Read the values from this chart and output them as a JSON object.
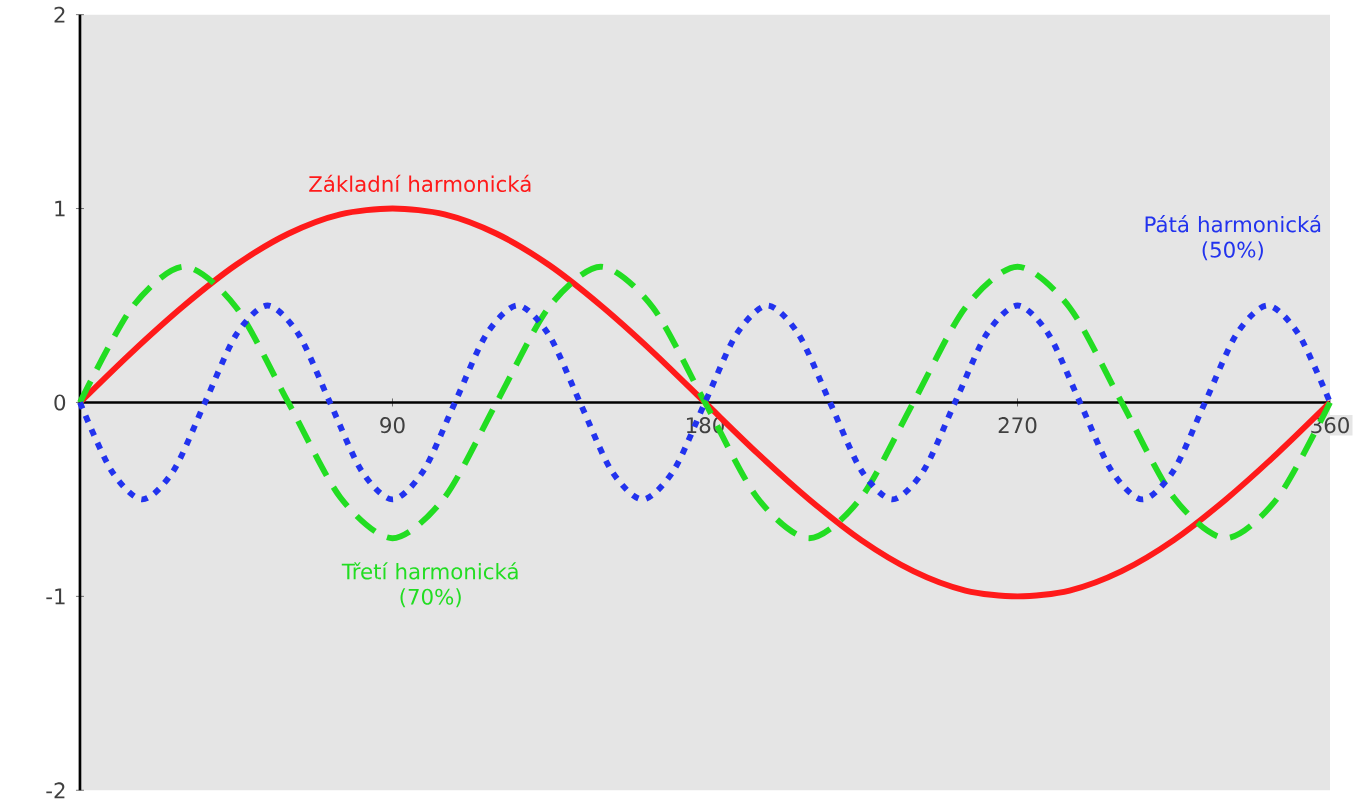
{
  "chart_data": {
    "type": "line",
    "xlim": [
      0,
      360
    ],
    "ylim": [
      -2,
      2
    ],
    "xticks": [
      {
        "value": 0,
        "label": null
      },
      {
        "value": 90,
        "label": "90"
      },
      {
        "value": 180,
        "label": "180"
      },
      {
        "value": 270,
        "label": "270"
      },
      {
        "value": 360,
        "label": "360"
      }
    ],
    "yticks": [
      {
        "value": -2,
        "label": "-2"
      },
      {
        "value": -1,
        "label": "-1"
      },
      {
        "value": 0,
        "label": "0"
      },
      {
        "value": 1,
        "label": "1"
      },
      {
        "value": 2,
        "label": "2"
      }
    ],
    "grid": false,
    "legend": false,
    "series": [
      {
        "name": "Základní harmonická",
        "color": "#ff1a1a",
        "line_style": "solid",
        "x": [
          0,
          15,
          30,
          45,
          60,
          75,
          90,
          105,
          120,
          135,
          150,
          165,
          180,
          195,
          210,
          225,
          240,
          255,
          270,
          285,
          300,
          315,
          330,
          345,
          360
        ],
        "values": [
          0,
          0.26,
          0.5,
          0.71,
          0.87,
          0.97,
          1,
          0.97,
          0.87,
          0.71,
          0.5,
          0.26,
          0,
          -0.26,
          -0.5,
          -0.71,
          -0.87,
          -0.97,
          -1,
          -0.97,
          -0.87,
          -0.71,
          -0.5,
          -0.26,
          0
        ]
      },
      {
        "name": "Třetí harmonická (70%)",
        "color": "#22dd22",
        "line_style": "dashed",
        "x": [
          0,
          15,
          30,
          45,
          60,
          75,
          90,
          105,
          120,
          135,
          150,
          165,
          180,
          195,
          210,
          225,
          240,
          255,
          270,
          285,
          300,
          315,
          330,
          345,
          360
        ],
        "values": [
          0,
          0.49,
          0.7,
          0.49,
          0,
          -0.49,
          -0.7,
          -0.49,
          0,
          0.49,
          0.7,
          0.49,
          0,
          -0.49,
          -0.7,
          -0.49,
          0,
          0.49,
          0.7,
          0.49,
          0,
          -0.49,
          -0.7,
          -0.49,
          0
        ]
      },
      {
        "name": "Pátá harmonická (50%)",
        "color": "#2233ee",
        "line_style": "dotted",
        "x": [
          0,
          9,
          18,
          27,
          36,
          45,
          54,
          63,
          72,
          81,
          90,
          99,
          108,
          117,
          126,
          135,
          144,
          153,
          162,
          171,
          180,
          189,
          198,
          207,
          216,
          225,
          234,
          243,
          252,
          261,
          270,
          279,
          288,
          297,
          306,
          315,
          324,
          333,
          342,
          351,
          360
        ],
        "values": [
          0,
          -0.35,
          -0.5,
          -0.35,
          0,
          0.35,
          0.5,
          0.35,
          0,
          -0.35,
          -0.5,
          -0.35,
          0,
          0.35,
          0.5,
          0.35,
          0,
          -0.35,
          -0.5,
          -0.35,
          0,
          0.35,
          0.5,
          0.35,
          0,
          -0.35,
          -0.5,
          -0.35,
          0,
          0.35,
          0.5,
          0.35,
          0,
          -0.35,
          -0.5,
          -0.35,
          0,
          0.35,
          0.5,
          0.35,
          0
        ]
      }
    ]
  }
}
